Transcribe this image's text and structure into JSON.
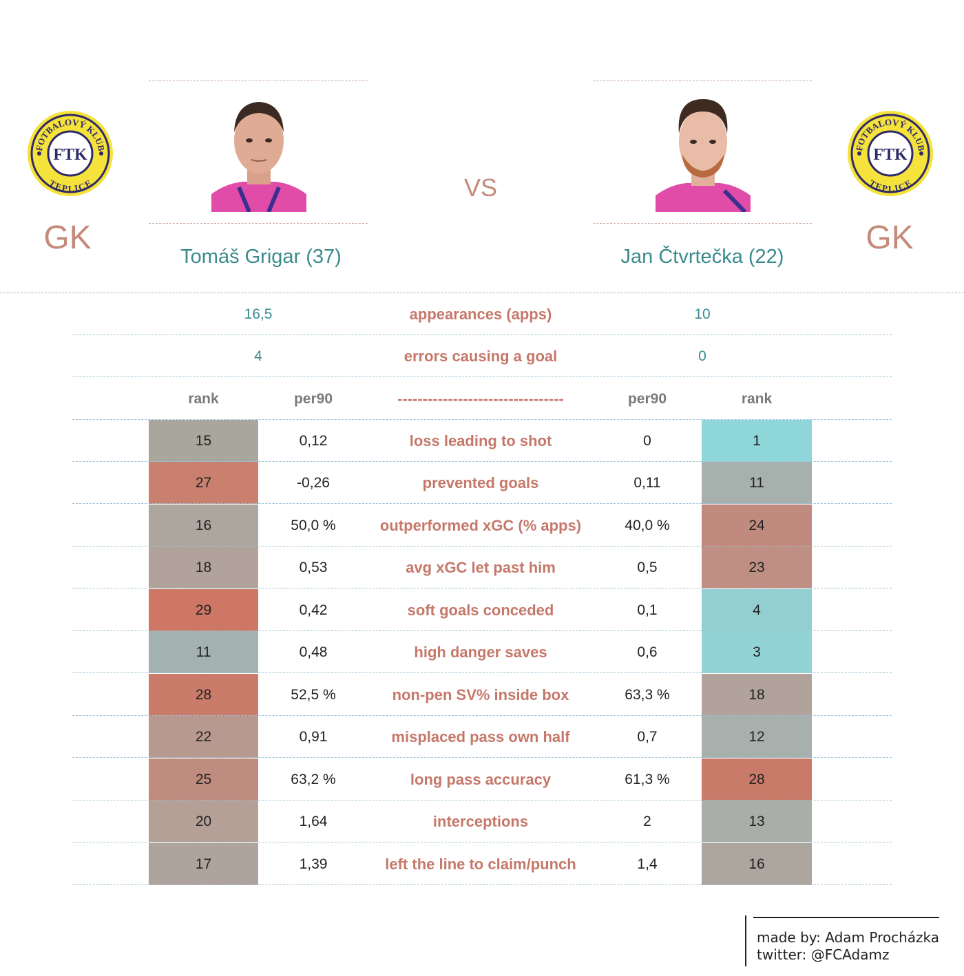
{
  "colors": {
    "accent_salmon": "#c5786a",
    "teal_text": "#3a8a8e",
    "rank_good": "#8fd6d9",
    "rank_bad": "#cc7868",
    "rank_neutral": "#aaa79f"
  },
  "header": {
    "left": {
      "club_logo": "FK Teplice crest",
      "logo_text_top": "FOTBALOVÝ KLUB",
      "logo_text_bottom": "TEPLICE",
      "logo_monogram": "FTK",
      "position": "GK",
      "player_name": "Tomáš Grigar (37)"
    },
    "vs": "VS",
    "right": {
      "club_logo": "FK Teplice crest",
      "logo_text_top": "FOTBALOVÝ KLUB",
      "logo_text_bottom": "TEPLICE",
      "logo_monogram": "FTK",
      "position": "GK",
      "player_name": "Jan Čtvrtečka (22)"
    }
  },
  "summary": [
    {
      "left": "16,5",
      "metric": "appearances (apps)",
      "right": "10"
    },
    {
      "left": "4",
      "metric": "errors causing a goal",
      "right": "0"
    }
  ],
  "columns": {
    "rank_left": "rank",
    "per90_left": "per90",
    "metric": "---------------------------------",
    "per90_right": "per90",
    "rank_right": "rank"
  },
  "stats": [
    {
      "metric": "loss leading to shot",
      "l_rank": "15",
      "l_val": "0,12",
      "r_val": "0",
      "r_rank": "1",
      "l_color": "#a9a69e",
      "r_color": "#8fd6da"
    },
    {
      "metric": "prevented goals",
      "l_rank": "27",
      "l_val": "-0,26",
      "r_val": "0,11",
      "r_rank": "11",
      "l_color": "#c9806f",
      "r_color": "#a6b1ae"
    },
    {
      "metric": "outperformed xGC (% apps)",
      "l_rank": "16",
      "l_val": "50,0 %",
      "r_val": "40,0 %",
      "r_rank": "24",
      "l_color": "#aca69f",
      "r_color": "#c08b7e"
    },
    {
      "metric": "avg xGC let past him",
      "l_rank": "18",
      "l_val": "0,53",
      "r_val": "0,5",
      "r_rank": "23",
      "l_color": "#b1a39b",
      "r_color": "#c08f83"
    },
    {
      "metric": "soft goals conceded",
      "l_rank": "29",
      "l_val": "0,42",
      "r_val": "0,1",
      "r_rank": "4",
      "l_color": "#cd7764",
      "r_color": "#93cfd0"
    },
    {
      "metric": "high danger saves",
      "l_rank": "11",
      "l_val": "0,48",
      "r_val": "0,6",
      "r_rank": "3",
      "l_color": "#a3b2b1",
      "r_color": "#92d4d6"
    },
    {
      "metric": "non-pen SV% inside box",
      "l_rank": "28",
      "l_val": "52,5 %",
      "r_val": "63,3 %",
      "r_rank": "18",
      "l_color": "#ca7b69",
      "r_color": "#b1a39b"
    },
    {
      "metric": "misplaced pass own half",
      "l_rank": "22",
      "l_val": "0,91",
      "r_val": "0,7",
      "r_rank": "12",
      "l_color": "#b89990",
      "r_color": "#a7b0ad"
    },
    {
      "metric": "long pass accuracy",
      "l_rank": "25",
      "l_val": "63,2 %",
      "r_val": "61,3 %",
      "r_rank": "28",
      "l_color": "#c18c80",
      "r_color": "#ca7a69"
    },
    {
      "metric": "interceptions",
      "l_rank": "20",
      "l_val": "1,64",
      "r_val": "2",
      "r_rank": "13",
      "l_color": "#b5a098",
      "r_color": "#a9aea9"
    },
    {
      "metric": "left the line to claim/punch",
      "l_rank": "17",
      "l_val": "1,39",
      "r_val": "1,4",
      "r_rank": "16",
      "l_color": "#afa49d",
      "r_color": "#aca69f"
    }
  ],
  "footer": {
    "line1": "made by: Adam Procházka",
    "line2": "twitter: @FCAdamz"
  }
}
